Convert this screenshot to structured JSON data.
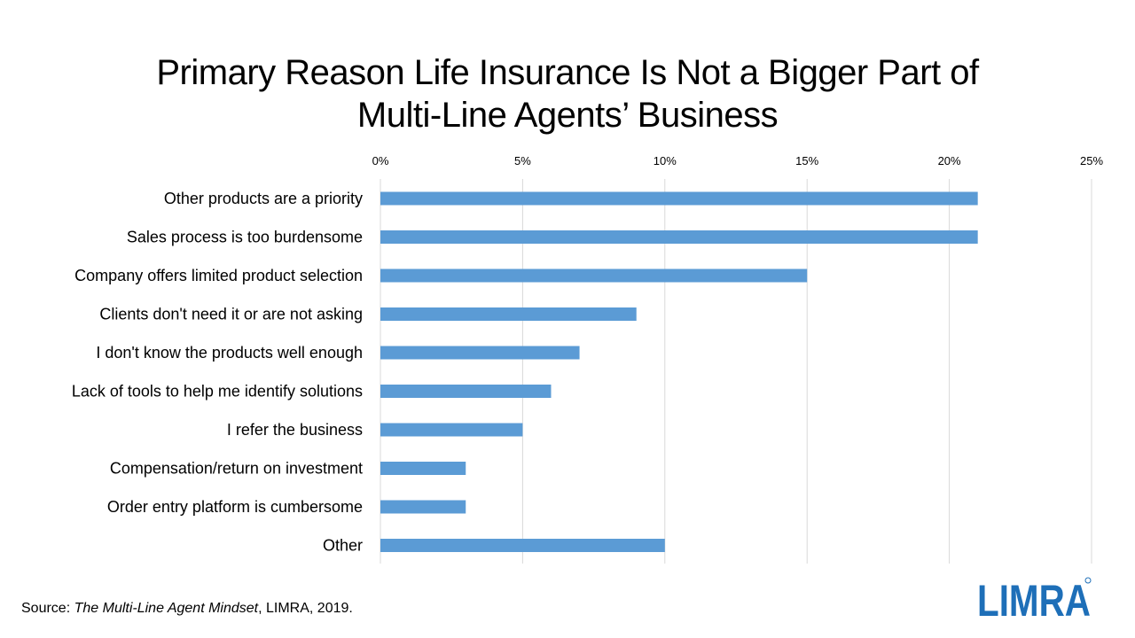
{
  "chart_data": {
    "type": "bar",
    "orientation": "horizontal",
    "title_line1": "Primary Reason Life Insurance Is Not a Bigger Part of",
    "title_line2": "Multi-Line Agents’ Business",
    "categories": [
      "Other products are a priority",
      "Sales process is too burdensome",
      "Company offers limited product selection",
      "Clients don't need it or are not asking",
      "I don't know the products well enough",
      "Lack of tools to help me identify solutions",
      "I refer the business",
      "Compensation/return on investment",
      "Order entry platform is cumbersome",
      "Other"
    ],
    "values": [
      21,
      21,
      15,
      9,
      7,
      6,
      5,
      3,
      3,
      10
    ],
    "unit": "%",
    "xlim": [
      0,
      25
    ],
    "xticks": [
      0,
      5,
      10,
      15,
      20,
      25
    ],
    "xtick_labels": [
      "0%",
      "5%",
      "10%",
      "15%",
      "20%",
      "25%"
    ],
    "x_axis_position": "top",
    "grid": true,
    "legend": "none",
    "bar_color": "#5b9bd5",
    "grid_color": "#d9d9d9"
  },
  "source": {
    "prefix": "Source: ",
    "publication": "The Multi-Line Agent Mindset",
    "suffix": ", LIMRA, 2019."
  },
  "logo": {
    "text": "LIMRA",
    "color": "#1e6fb8"
  }
}
